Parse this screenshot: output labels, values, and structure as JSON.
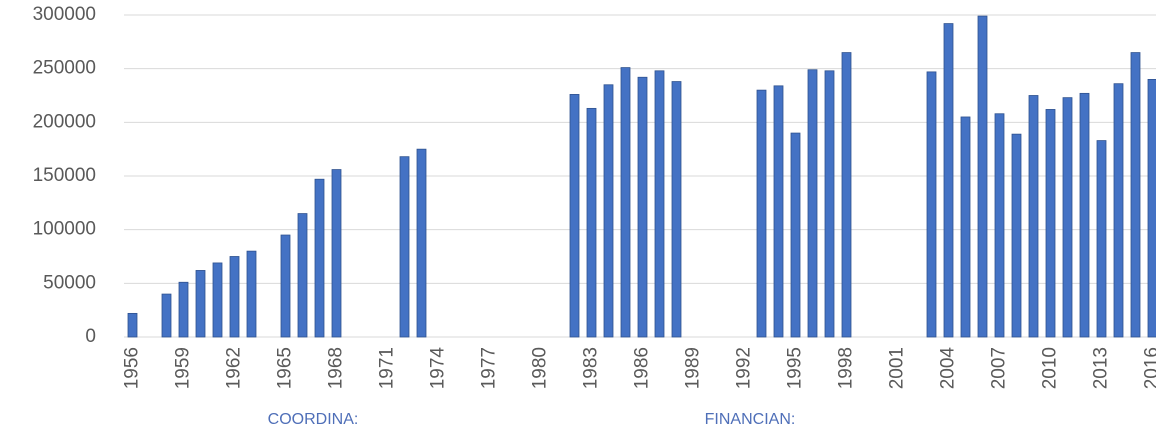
{
  "chart_data": {
    "type": "bar",
    "categories": [
      "1956",
      null,
      null,
      "1959",
      null,
      null,
      "1962",
      null,
      null,
      "1965",
      null,
      null,
      "1968",
      null,
      null,
      "1971",
      null,
      null,
      "1974",
      null,
      null,
      "1977",
      null,
      null,
      "1980",
      null,
      null,
      "1983",
      null,
      null,
      "1986",
      null,
      null,
      "1989",
      null,
      null,
      "1992",
      null,
      null,
      "1995",
      null,
      null,
      "1998",
      null,
      null,
      "2001",
      null,
      null,
      "2004",
      null,
      null,
      "2007",
      null,
      null,
      "2010",
      null,
      null,
      "2013",
      null,
      null,
      "2016"
    ],
    "values": [
      22000,
      null,
      40000,
      51000,
      62000,
      69000,
      75000,
      80000,
      null,
      95000,
      115000,
      147000,
      156000,
      null,
      null,
      null,
      168000,
      175000,
      null,
      null,
      null,
      null,
      null,
      null,
      null,
      null,
      226000,
      213000,
      235000,
      251000,
      242000,
      248000,
      238000,
      null,
      null,
      null,
      null,
      230000,
      234000,
      190000,
      249000,
      248000,
      265000,
      null,
      null,
      null,
      null,
      247000,
      292000,
      205000,
      299000,
      208000,
      189000,
      225000,
      212000,
      223000,
      227000,
      183000,
      236000,
      265000,
      240000
    ],
    "color": "#4472c4",
    "ylim": [
      0,
      300000
    ],
    "yticks": [
      0,
      50000,
      100000,
      150000,
      200000,
      250000,
      300000
    ],
    "grid": true,
    "annotations": [
      "COORDINA:",
      "FINANCIAN:"
    ]
  }
}
